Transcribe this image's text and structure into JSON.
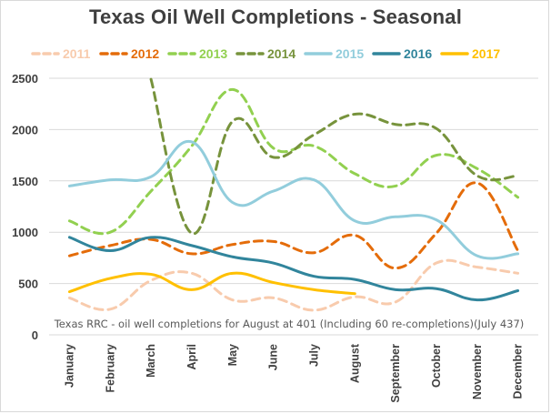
{
  "chart_data": {
    "type": "line",
    "title": "Texas Oil Well Completions - Seasonal",
    "xlabel": "",
    "ylabel": "",
    "ylim": [
      0,
      2500
    ],
    "yticks": [
      0,
      500,
      1000,
      1500,
      2000,
      2500
    ],
    "grid": true,
    "legend_position": "top",
    "categories": [
      "January",
      "February",
      "March",
      "April",
      "May",
      "June",
      "July",
      "August",
      "September",
      "October",
      "November",
      "December"
    ],
    "annotation": "Texas RRC - oil well completions for August at 401 (Including 60 re-completions)(July 437)",
    "series": [
      {
        "name": "2011",
        "color": "#f8cbad",
        "dash": true,
        "values": [
          360,
          250,
          530,
          600,
          340,
          360,
          240,
          370,
          320,
          700,
          660,
          600
        ]
      },
      {
        "name": "2012",
        "color": "#e46c0a",
        "dash": true,
        "values": [
          770,
          870,
          930,
          790,
          880,
          910,
          800,
          970,
          650,
          990,
          1480,
          820
        ]
      },
      {
        "name": "2013",
        "color": "#92d050",
        "dash": true,
        "values": [
          1110,
          1000,
          1400,
          1840,
          2390,
          1820,
          1840,
          1570,
          1450,
          1750,
          1620,
          1340
        ]
      },
      {
        "name": "2014",
        "color": "#77933c",
        "dash": true,
        "values": [
          null,
          null,
          2490,
          990,
          2080,
          1730,
          1950,
          2150,
          2050,
          2010,
          1550,
          1550
        ]
      },
      {
        "name": "2015",
        "color": "#92cddc",
        "dash": false,
        "values": [
          1450,
          1510,
          1540,
          1880,
          1290,
          1400,
          1510,
          1110,
          1150,
          1120,
          770,
          790
        ]
      },
      {
        "name": "2016",
        "color": "#31859c",
        "dash": false,
        "values": [
          950,
          820,
          950,
          870,
          760,
          700,
          570,
          540,
          440,
          450,
          340,
          430
        ]
      },
      {
        "name": "2017",
        "color": "#ffc000",
        "dash": false,
        "values": [
          420,
          550,
          590,
          440,
          600,
          510,
          440,
          401,
          null,
          null,
          null,
          null
        ]
      }
    ]
  }
}
